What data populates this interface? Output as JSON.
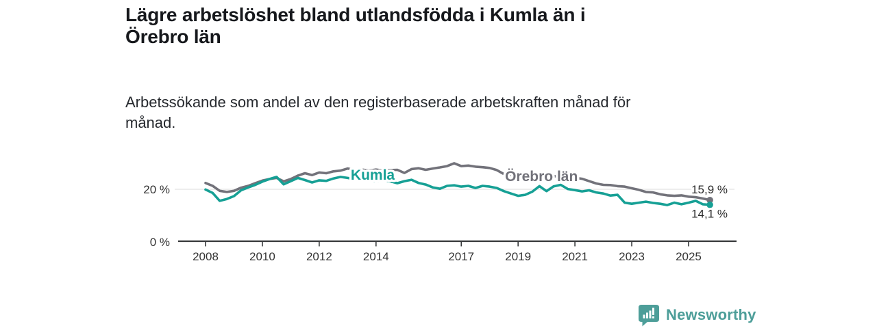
{
  "header": {
    "title": "Lägre arbetslöshet bland utlandsfödda i Kumla än i Örebro län",
    "subtitle": "Arbetssökande som andel av den registerbaserade arbetskraften månad för månad."
  },
  "branding": {
    "wordmark": "Newsworthy",
    "color": "#4d9e99",
    "icon": "newsworthy-speech-bubble-bar-chart-icon"
  },
  "chart_data": {
    "type": "line",
    "title": "Lägre arbetslöshet bland utlandsfödda i Kumla än i Örebro län",
    "subtitle": "Arbetssökande som andel av den registerbaserade arbetskraften månad för månad.",
    "unit": "%",
    "x_range": [
      2008,
      2025.75
    ],
    "ylim": [
      0,
      32.5
    ],
    "grid": "horizontal-20-only",
    "legend": "inline-labels",
    "x_axis": {
      "tick_values": [
        2008,
        2010,
        2012,
        2014,
        2017,
        2019,
        2021,
        2023,
        2025
      ],
      "tick_labels": [
        "2008",
        "2010",
        "2012",
        "2014",
        "2017",
        "2019",
        "2021",
        "2023",
        "2025"
      ]
    },
    "y_axis": {
      "ticks": [
        {
          "value": 20,
          "label": "20 %",
          "gridline": true
        },
        {
          "value": 0,
          "label": "0 %",
          "gridline": false
        }
      ]
    },
    "series": [
      {
        "name": "Örebro län",
        "color": "#72727a",
        "x_start": 2008,
        "x_step": 0.25,
        "values": [
          22.4,
          21.3,
          19.4,
          19.0,
          19.4,
          20.6,
          21.3,
          22.3,
          23.3,
          23.9,
          24.3,
          23.0,
          23.9,
          25.2,
          26.1,
          25.4,
          26.4,
          26.1,
          26.8,
          27.1,
          27.9,
          27.3,
          27.5,
          27.1,
          27.5,
          27.1,
          27.3,
          27.4,
          26.2,
          27.7,
          28.0,
          27.4,
          27.9,
          28.3,
          28.8,
          29.9,
          28.8,
          29.0,
          28.6,
          28.4,
          28.1,
          27.3,
          25.8,
          25.5,
          25.3,
          25.1,
          24.9,
          24.8,
          24.7,
          24.9,
          25.1,
          24.7,
          24.4,
          24.0,
          23.1,
          22.2,
          21.7,
          21.6,
          21.2,
          21.0,
          20.4,
          19.8,
          19.0,
          18.8,
          18.1,
          17.7,
          17.5,
          17.7,
          17.2,
          17.0,
          16.5,
          15.9
        ],
        "end_value": 15.9,
        "end_label": "15,9 %",
        "label_anchor": {
          "t": 2018.54,
          "v": 24.9
        }
      },
      {
        "name": "Kumla",
        "color": "#16a095",
        "x_start": 2008,
        "x_step": 0.25,
        "values": [
          19.9,
          18.6,
          15.6,
          16.3,
          17.4,
          19.6,
          20.7,
          21.7,
          22.9,
          23.9,
          24.7,
          21.9,
          23.1,
          24.3,
          23.5,
          22.6,
          23.4,
          23.2,
          24.1,
          24.7,
          24.3,
          23.9,
          23.6,
          23.4,
          23.2,
          23.5,
          23.0,
          22.3,
          23.1,
          23.6,
          22.4,
          21.8,
          20.7,
          20.2,
          21.3,
          21.5,
          21.0,
          21.3,
          20.5,
          21.3,
          21.0,
          20.5,
          19.3,
          18.4,
          17.5,
          17.9,
          19.1,
          21.2,
          19.3,
          21.1,
          21.7,
          20.1,
          19.7,
          19.2,
          19.6,
          18.8,
          18.4,
          17.6,
          17.9,
          14.9,
          14.5,
          14.9,
          15.3,
          14.8,
          14.5,
          14.0,
          14.9,
          14.3,
          14.9,
          15.6,
          14.3,
          14.1
        ],
        "end_value": 14.1,
        "end_label": "14,1 %",
        "label_anchor": {
          "t": 2013.11,
          "v": 25.4
        }
      }
    ],
    "style": {
      "axis_color": "#36383a",
      "tick_text_color": "#333333",
      "gridline_color": "#e2e2e2",
      "end_label_color": "#2b2b2b"
    }
  }
}
